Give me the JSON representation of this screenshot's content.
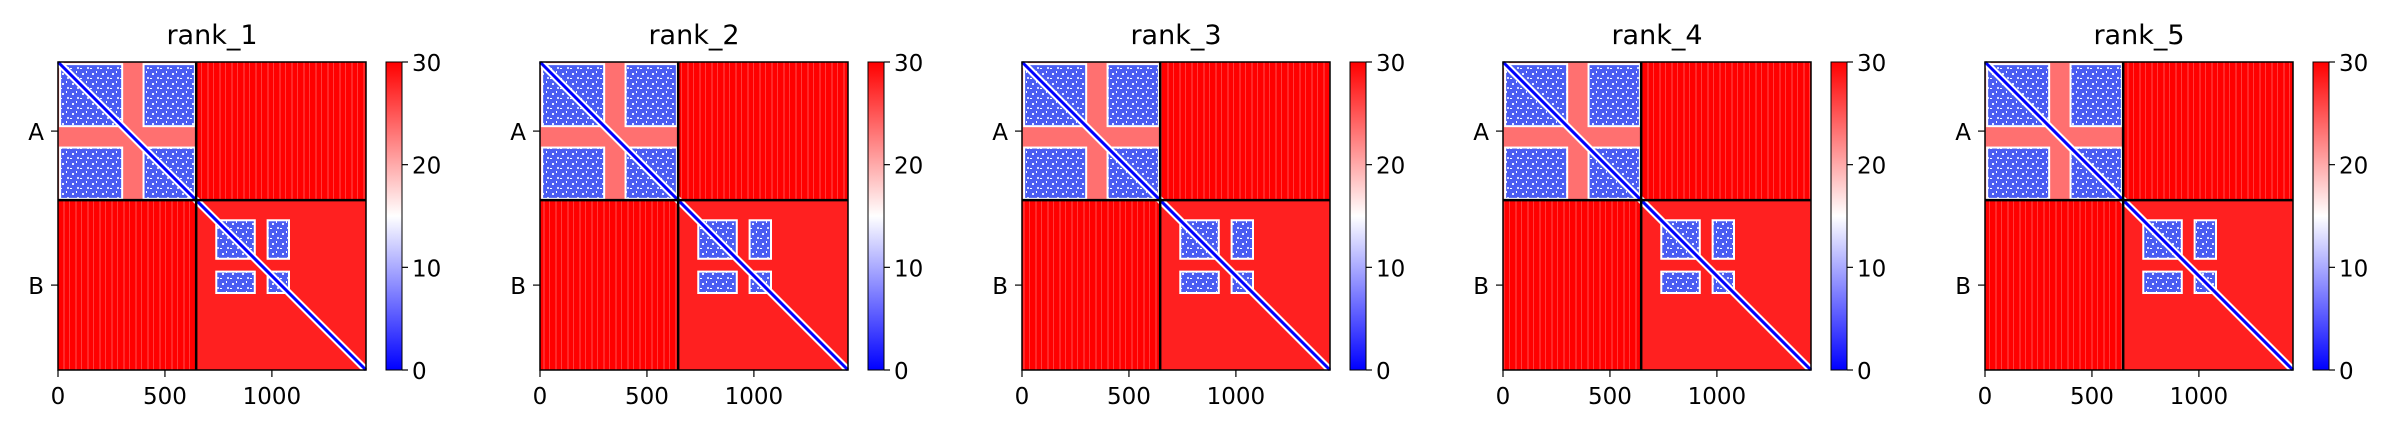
{
  "figure": {
    "panels": [
      "rank_1",
      "rank_2",
      "rank_3",
      "rank_4",
      "rank_5"
    ]
  },
  "colors": {
    "low": "#0000ff",
    "mid": "#ffffff",
    "high": "#ff0000",
    "boundary": "#000000"
  },
  "chart_data": [
    {
      "type": "heatmap",
      "title": "rank_1",
      "x_ticks": [
        0,
        500,
        1000
      ],
      "y_tick_labels": [
        "A",
        "B"
      ],
      "chain_boundary": 646,
      "xlim": [
        0,
        1440
      ],
      "colorbar": {
        "min": 0,
        "max": 30,
        "ticks": [
          0,
          10,
          20,
          30
        ],
        "colormap": "bwr"
      }
    },
    {
      "type": "heatmap",
      "title": "rank_2",
      "x_ticks": [
        0,
        500,
        1000
      ],
      "y_tick_labels": [
        "A",
        "B"
      ],
      "chain_boundary": 646,
      "xlim": [
        0,
        1440
      ],
      "colorbar": {
        "min": 0,
        "max": 30,
        "ticks": [
          0,
          10,
          20,
          30
        ],
        "colormap": "bwr"
      }
    },
    {
      "type": "heatmap",
      "title": "rank_3",
      "x_ticks": [
        0,
        500,
        1000
      ],
      "y_tick_labels": [
        "A",
        "B"
      ],
      "chain_boundary": 646,
      "xlim": [
        0,
        1440
      ],
      "colorbar": {
        "min": 0,
        "max": 30,
        "ticks": [
          0,
          10,
          20,
          30
        ],
        "colormap": "bwr"
      }
    },
    {
      "type": "heatmap",
      "title": "rank_4",
      "x_ticks": [
        0,
        500,
        1000
      ],
      "y_tick_labels": [
        "A",
        "B"
      ],
      "chain_boundary": 646,
      "xlim": [
        0,
        1440
      ],
      "colorbar": {
        "min": 0,
        "max": 30,
        "ticks": [
          0,
          10,
          20,
          30
        ],
        "colormap": "bwr"
      }
    },
    {
      "type": "heatmap",
      "title": "rank_5",
      "x_ticks": [
        0,
        500,
        1000
      ],
      "y_tick_labels": [
        "A",
        "B"
      ],
      "chain_boundary": 646,
      "xlim": [
        0,
        1440
      ],
      "colorbar": {
        "min": 0,
        "max": 30,
        "ticks": [
          0,
          10,
          20,
          30
        ],
        "colormap": "bwr"
      }
    }
  ]
}
